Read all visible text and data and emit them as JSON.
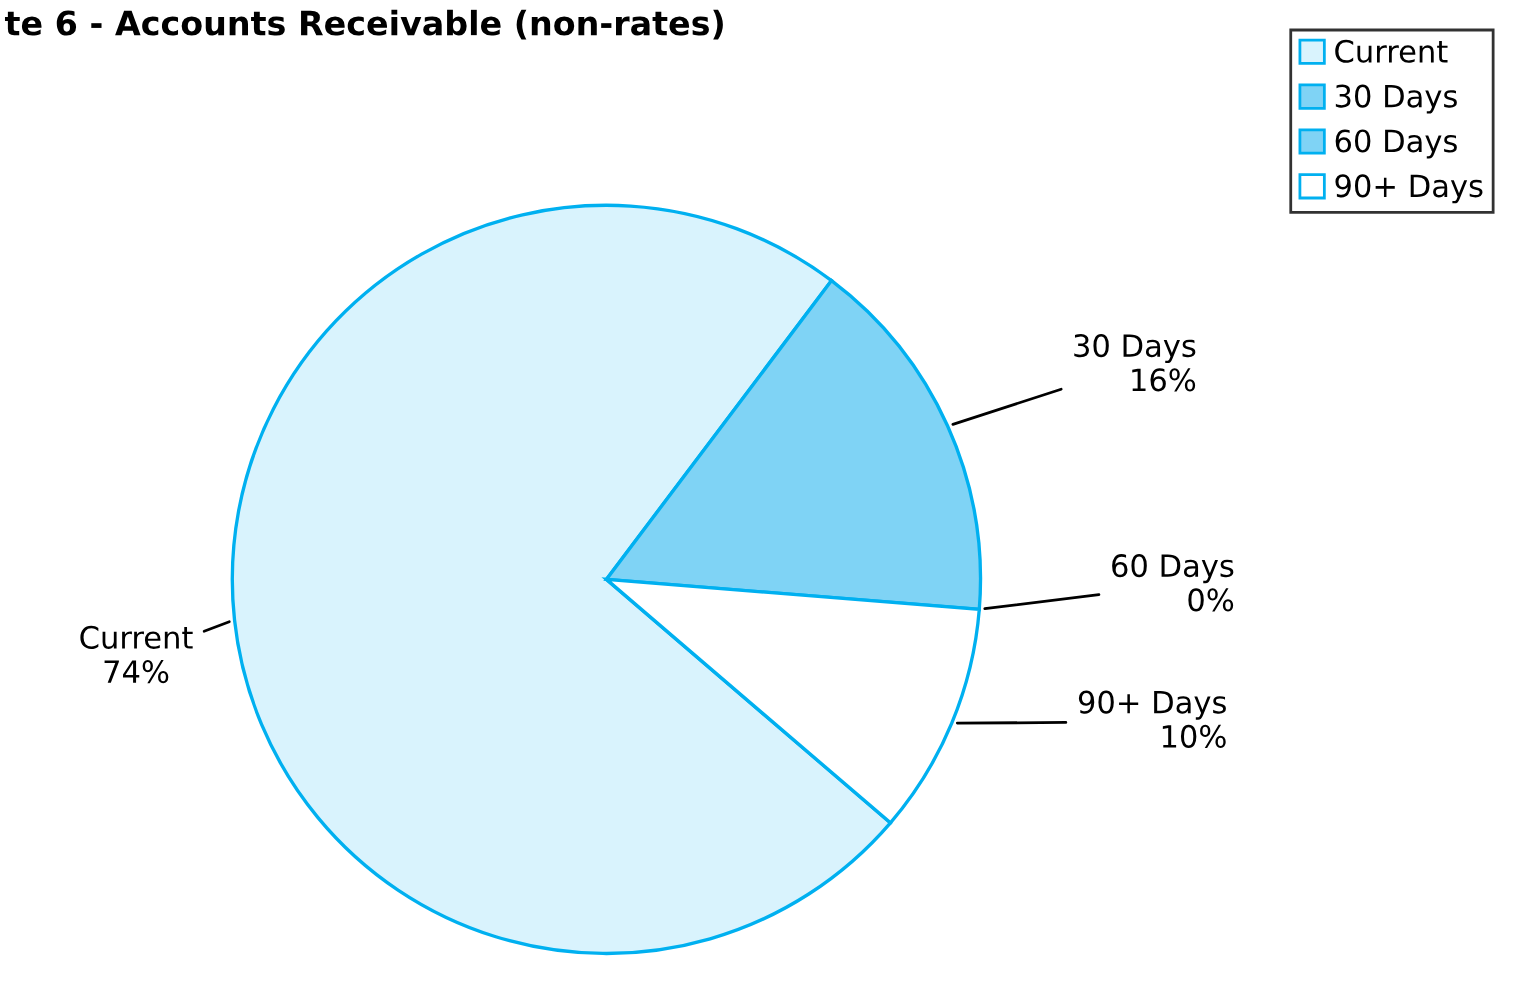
{
  "chart_data": {
    "type": "pie",
    "title": "te 6 - Accounts Receivable (non-rates)",
    "categories": [
      "Current",
      "30 Days",
      "60 Days",
      "90+ Days"
    ],
    "values": [
      74,
      16,
      0,
      10
    ],
    "value_labels": [
      "74%",
      "16%",
      "0%",
      "10%"
    ],
    "colors": [
      "#d9f3fd",
      "#7fd3f5",
      "#7fd3f5",
      "#ffffff"
    ],
    "legend": "top right"
  }
}
